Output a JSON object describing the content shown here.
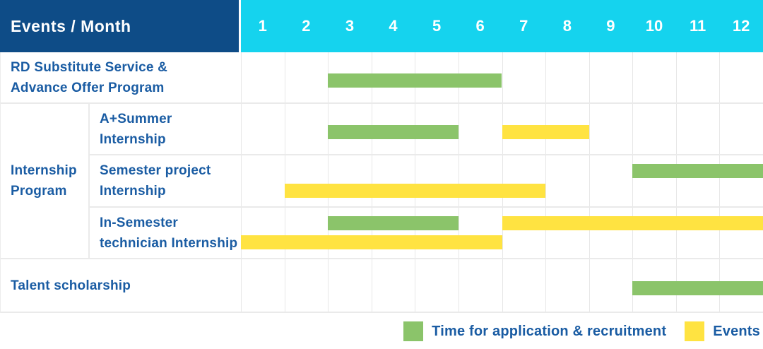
{
  "header": {
    "title": "Events / Month",
    "months": [
      "1",
      "2",
      "3",
      "4",
      "5",
      "6",
      "7",
      "8",
      "9",
      "10",
      "11",
      "12"
    ]
  },
  "colors": {
    "header_bg": "#0e4c87",
    "months_bg": "#15d3ee",
    "green": "#8bc46a",
    "yellow": "#ffe341",
    "text_blue": "#1a5ca3",
    "grid": "#e7e7e7"
  },
  "group": {
    "label": "Internship Program",
    "label_lines": [
      "Internship",
      "Program"
    ]
  },
  "rows": [
    {
      "label": "RD Substitute Service & Advance Offer Program",
      "label_lines": [
        "RD Substitute Service &",
        "Advance Offer Program"
      ],
      "bars": [
        {
          "color_key": "green",
          "start_month": 3,
          "end_month": 6,
          "track": "mid"
        }
      ]
    },
    {
      "label": "A+Summer Internship",
      "label_lines": [
        "A+Summer",
        "Internship"
      ],
      "bars": [
        {
          "color_key": "green",
          "start_month": 3,
          "end_month": 5,
          "track": "mid"
        },
        {
          "color_key": "yellow",
          "start_month": 7,
          "end_month": 8,
          "track": "mid"
        }
      ]
    },
    {
      "label": "Semester project Internship",
      "label_lines": [
        "Semester project",
        "Internship"
      ],
      "bars": [
        {
          "color_key": "green",
          "start_month": 10,
          "end_month": 12,
          "track": "a"
        },
        {
          "color_key": "yellow",
          "start_month": 2,
          "end_month": 7,
          "track": "b"
        }
      ]
    },
    {
      "label": "In-Semester technician Internship",
      "label_lines": [
        "In-Semester",
        "technician Internship"
      ],
      "bars": [
        {
          "color_key": "green",
          "start_month": 3,
          "end_month": 5,
          "track": "a"
        },
        {
          "color_key": "yellow",
          "start_month": 7,
          "end_month": 12,
          "track": "a"
        },
        {
          "color_key": "yellow",
          "start_month": 1,
          "end_month": 6,
          "track": "b"
        }
      ]
    },
    {
      "label": "Talent scholarship",
      "label_lines": [
        "Talent scholarship"
      ],
      "bars": [
        {
          "color_key": "green",
          "start_month": 10,
          "end_month": 12,
          "track": "mid"
        }
      ]
    }
  ],
  "legend": [
    {
      "color_key": "green",
      "label": "Time for application & recruitment"
    },
    {
      "color_key": "yellow",
      "label": "Events"
    }
  ],
  "chart_data": {
    "type": "bar",
    "subtype": "gantt",
    "title": "Events / Month",
    "x_categories": [
      1,
      2,
      3,
      4,
      5,
      6,
      7,
      8,
      9,
      10,
      11,
      12
    ],
    "x_range": [
      1,
      12
    ],
    "grid": true,
    "legend_position": "bottom-right",
    "series_legend": [
      "Time for application & recruitment",
      "Events"
    ],
    "rows": [
      {
        "label": "RD Substitute Service & Advance Offer Program",
        "group": null,
        "spans": [
          {
            "series": "Time for application & recruitment",
            "start_month": 3,
            "end_month": 6
          }
        ]
      },
      {
        "label": "A+Summer Internship",
        "group": "Internship Program",
        "spans": [
          {
            "series": "Time for application & recruitment",
            "start_month": 3,
            "end_month": 5
          },
          {
            "series": "Events",
            "start_month": 7,
            "end_month": 8
          }
        ]
      },
      {
        "label": "Semester project Internship",
        "group": "Internship Program",
        "spans": [
          {
            "series": "Time for application & recruitment",
            "start_month": 10,
            "end_month": 12
          },
          {
            "series": "Events",
            "start_month": 2,
            "end_month": 7
          }
        ]
      },
      {
        "label": "In-Semester technician Internship",
        "group": "Internship Program",
        "spans": [
          {
            "series": "Time for application & recruitment",
            "start_month": 3,
            "end_month": 5
          },
          {
            "series": "Events",
            "start_month": 7,
            "end_month": 12
          },
          {
            "series": "Events",
            "start_month": 1,
            "end_month": 6
          }
        ]
      },
      {
        "label": "Talent scholarship",
        "group": null,
        "spans": [
          {
            "series": "Time for application & recruitment",
            "start_month": 10,
            "end_month": 12
          }
        ]
      }
    ]
  }
}
